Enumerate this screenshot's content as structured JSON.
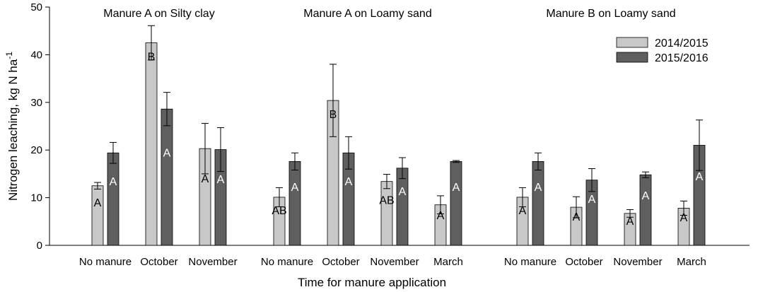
{
  "chart_data": {
    "type": "bar",
    "xlabel": "Time for manure application",
    "ylabel": "Nitrogen leaching, kg N ha",
    "ylabel_superscript": "-1",
    "ylim": [
      0,
      50
    ],
    "yticks": [
      0,
      10,
      20,
      30,
      40,
      50
    ],
    "grid": false,
    "legend_position": "top-right",
    "series": [
      {
        "name": "2014/2015",
        "color": "#c8c8c8",
        "label_color": "#000000"
      },
      {
        "name": "2015/2016",
        "color": "#5f5f5f",
        "label_color": "#ffffff"
      }
    ],
    "groups": [
      {
        "title": "Manure A on Silty clay",
        "categories": [
          {
            "label": "No manure",
            "values": [
              12.5,
              19.4
            ],
            "errors": [
              0.7,
              2.2
            ],
            "letters": [
              "A",
              "A"
            ]
          },
          {
            "label": "October",
            "values": [
              42.5,
              28.6
            ],
            "errors": [
              3.6,
              3.5
            ],
            "letters": [
              "B",
              "A"
            ]
          },
          {
            "label": "November",
            "values": [
              20.3,
              20.1
            ],
            "errors": [
              5.3,
              4.6
            ],
            "letters": [
              "A",
              "A"
            ]
          }
        ]
      },
      {
        "title": "Manure A on Loamy sand",
        "categories": [
          {
            "label": "No manure",
            "values": [
              10.1,
              17.6
            ],
            "errors": [
              2.0,
              1.8
            ],
            "letters": [
              "AB",
              "A"
            ]
          },
          {
            "label": "October",
            "values": [
              30.4,
              19.4
            ],
            "errors": [
              7.6,
              3.4
            ],
            "letters": [
              "B",
              "A"
            ]
          },
          {
            "label": "November",
            "values": [
              13.4,
              16.2
            ],
            "errors": [
              1.5,
              2.2
            ],
            "letters": [
              "AB",
              "A"
            ]
          },
          {
            "label": "March",
            "values": [
              8.5,
              17.6
            ],
            "errors": [
              1.9,
              0.2
            ],
            "letters": [
              "A",
              "A"
            ]
          }
        ]
      },
      {
        "title": "Manure B on Loamy sand",
        "categories": [
          {
            "label": "No manure",
            "values": [
              10.1,
              17.6
            ],
            "errors": [
              2.0,
              1.8
            ],
            "letters": [
              "A",
              "A"
            ]
          },
          {
            "label": "October",
            "values": [
              8.0,
              13.7
            ],
            "errors": [
              2.2,
              2.4
            ],
            "letters": [
              "A",
              "A"
            ]
          },
          {
            "label": "November",
            "values": [
              6.7,
              14.8
            ],
            "errors": [
              0.8,
              0.6
            ],
            "letters": [
              "A",
              "A"
            ]
          },
          {
            "label": "March",
            "values": [
              7.8,
              21.0
            ],
            "errors": [
              1.5,
              5.3
            ],
            "letters": [
              "A",
              "A"
            ]
          }
        ]
      }
    ]
  }
}
